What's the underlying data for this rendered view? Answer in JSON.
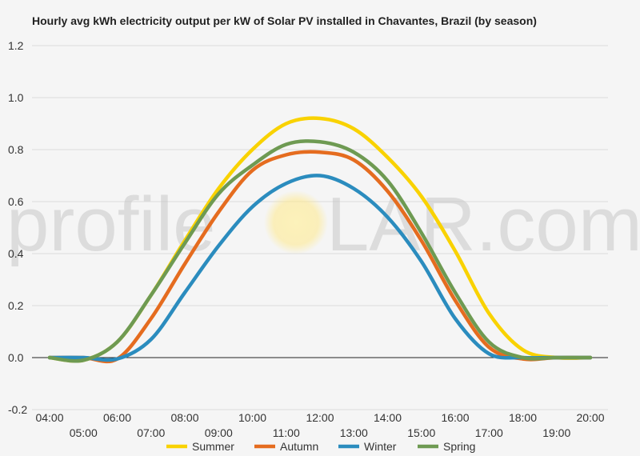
{
  "chart_data": {
    "type": "line",
    "title": "Hourly avg kWh electricity output per kW of Solar PV installed in Chavantes, Brazil (by season)",
    "xlabel": "",
    "ylabel": "",
    "x_labels": [
      "04:00",
      "05:00",
      "06:00",
      "07:00",
      "08:00",
      "09:00",
      "10:00",
      "11:00",
      "12:00",
      "13:00",
      "14:00",
      "15:00",
      "16:00",
      "17:00",
      "18:00",
      "19:00",
      "20:00"
    ],
    "ylim": [
      -0.2,
      1.2
    ],
    "yticks": [
      -0.2,
      0.0,
      0.2,
      0.4,
      0.6,
      0.8,
      1.0,
      1.2
    ],
    "ytick_labels": [
      "-0.2",
      "0.0",
      "0.2",
      "0.4",
      "0.6",
      "0.8",
      "1.0",
      "1.2"
    ],
    "grid": true,
    "legend_position": "bottom",
    "series": [
      {
        "name": "Summer",
        "color": "#f9d200",
        "values": [
          0.0,
          -0.01,
          0.06,
          0.24,
          0.45,
          0.65,
          0.8,
          0.9,
          0.92,
          0.88,
          0.77,
          0.62,
          0.41,
          0.17,
          0.03,
          0.0,
          0.0
        ]
      },
      {
        "name": "Autumn",
        "color": "#e56c1f",
        "values": [
          0.0,
          0.0,
          -0.005,
          0.15,
          0.36,
          0.56,
          0.72,
          0.78,
          0.79,
          0.76,
          0.64,
          0.45,
          0.22,
          0.04,
          -0.005,
          0.0,
          0.0
        ]
      },
      {
        "name": "Winter",
        "color": "#2b8cbe",
        "values": [
          0.0,
          0.0,
          -0.005,
          0.07,
          0.25,
          0.43,
          0.58,
          0.67,
          0.7,
          0.65,
          0.54,
          0.37,
          0.15,
          0.015,
          0.0,
          0.0,
          0.0
        ]
      },
      {
        "name": "Spring",
        "color": "#6e9a52",
        "values": [
          0.0,
          -0.01,
          0.06,
          0.24,
          0.44,
          0.63,
          0.74,
          0.82,
          0.83,
          0.79,
          0.68,
          0.48,
          0.25,
          0.06,
          0.0,
          0.0,
          0.0
        ]
      }
    ]
  },
  "watermark": {
    "left": "profile",
    "sun_letter": "S",
    "right": "LAR.com"
  }
}
